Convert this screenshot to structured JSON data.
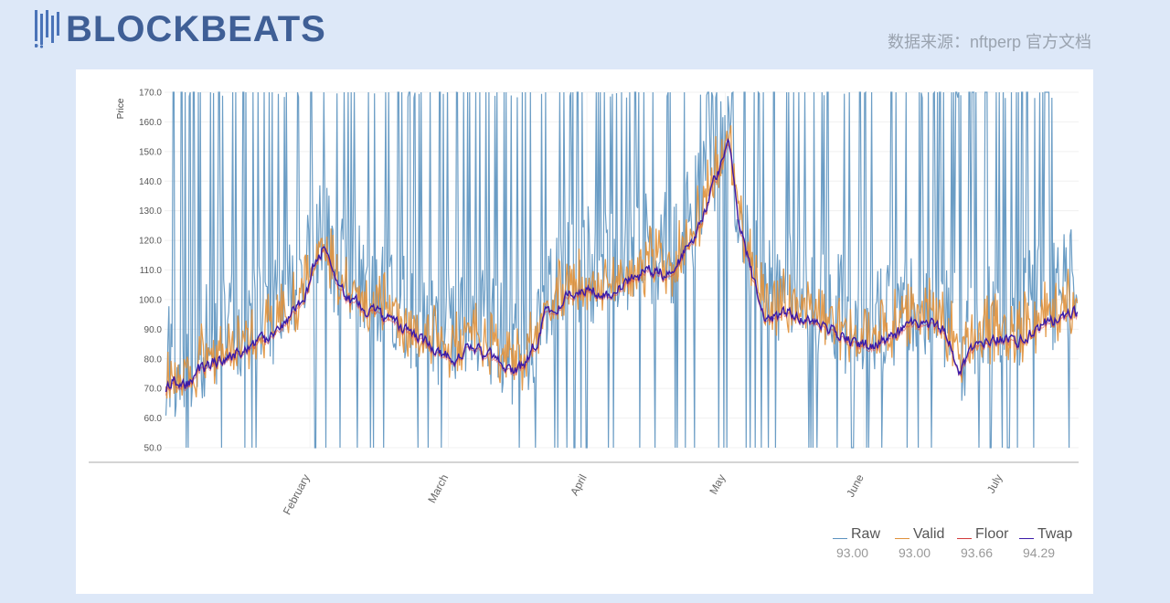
{
  "header": {
    "logo_text": "BLOCKBEATS",
    "source_text": "数据来源：nftperp 官方文档"
  },
  "chart_data": {
    "type": "line",
    "ylabel": "Price",
    "ylim": [
      50,
      170
    ],
    "yticks": [
      "50.0",
      "60.0",
      "70.0",
      "80.0",
      "90.0",
      "100.0",
      "110.0",
      "120.0",
      "130.0",
      "140.0",
      "150.0",
      "160.0",
      "170.0"
    ],
    "x_range_months": [
      0.95,
      7.55
    ],
    "xticks": [
      {
        "label": "February",
        "pos": 2.0
      },
      {
        "label": "March",
        "pos": 3.0
      },
      {
        "label": "April",
        "pos": 4.0
      },
      {
        "label": "May",
        "pos": 5.0
      },
      {
        "label": "June",
        "pos": 6.0
      },
      {
        "label": "July",
        "pos": 7.0
      }
    ],
    "grid": true,
    "legend_position": "bottom-right",
    "colors": {
      "Raw": "#5b92bf",
      "Valid": "#e0913b",
      "Floor": "#d33a3a",
      "Twap": "#3b1aa8"
    },
    "series": [
      {
        "name": "Raw",
        "latest": "93.00"
      },
      {
        "name": "Valid",
        "latest": "93.00"
      },
      {
        "name": "Floor",
        "latest": "93.66"
      },
      {
        "name": "Twap",
        "latest": "94.29"
      }
    ],
    "twap_trend": {
      "x": [
        0.96,
        1.0,
        1.08,
        1.2,
        1.35,
        1.5,
        1.65,
        1.78,
        1.9,
        1.98,
        2.03,
        2.1,
        2.2,
        2.3,
        2.45,
        2.6,
        2.75,
        2.85,
        2.95,
        3.05,
        3.15,
        3.25,
        3.35,
        3.45,
        3.55,
        3.62,
        3.7,
        3.85,
        4.0,
        4.15,
        4.3,
        4.45,
        4.6,
        4.72,
        4.82,
        4.9,
        4.98,
        5.03,
        5.1,
        5.2,
        5.3,
        5.45,
        5.6,
        5.75,
        5.9,
        6.05,
        6.2,
        6.35,
        6.5,
        6.6,
        6.7,
        6.8,
        6.9,
        7.0,
        7.1,
        7.2,
        7.35,
        7.5,
        7.55
      ],
      "y": [
        68,
        73,
        70,
        76,
        80,
        83,
        85,
        90,
        96,
        103,
        112,
        118,
        104,
        99,
        96,
        92,
        88,
        85,
        82,
        80,
        86,
        82,
        80,
        76,
        78,
        84,
        95,
        100,
        104,
        102,
        106,
        110,
        108,
        117,
        125,
        137,
        146,
        152,
        125,
        107,
        93,
        96,
        94,
        90,
        86,
        84,
        88,
        91,
        92,
        88,
        76,
        84,
        86,
        87,
        85,
        89,
        93,
        96,
        95
      ]
    }
  },
  "legend": [
    {
      "name": "Raw",
      "value": "93.00"
    },
    {
      "name": "Valid",
      "value": "93.00"
    },
    {
      "name": "Floor",
      "value": "93.66"
    },
    {
      "name": "Twap",
      "value": "94.29"
    }
  ]
}
